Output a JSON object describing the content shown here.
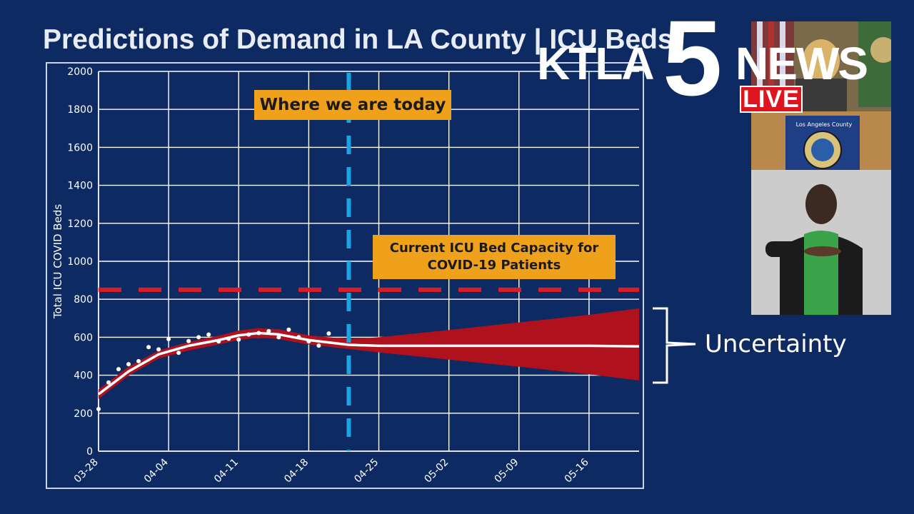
{
  "slide": {
    "title": "Predictions of Demand in LA County | ICU Beds"
  },
  "annotations": {
    "today": "Where we are today",
    "capacity": "Current ICU Bed Capacity for\nCOVID-19 Patients",
    "uncertainty": "Uncertainty"
  },
  "broadcast": {
    "station": "KTLA",
    "channel_number": "5",
    "news": "NEWS",
    "live": "LIVE",
    "podium_sign": "Los Angeles County"
  },
  "colors": {
    "background": "#0d2a63",
    "band": "#b0121d",
    "median_line": "#ffffff",
    "capacity_line": "#e01b24",
    "today_line": "#1fa3e0",
    "annotation_box": "#f0a11c",
    "live_badge": "#e0141e"
  },
  "chart_data": {
    "type": "line",
    "title": "",
    "xlabel": "",
    "ylabel": "Total ICU COVID Beds",
    "ylim": [
      0,
      2000
    ],
    "yticks": [
      0,
      200,
      400,
      600,
      800,
      1000,
      1200,
      1400,
      1600,
      1800,
      2000
    ],
    "xlim": [
      "03-28",
      "05-21"
    ],
    "xticks": [
      "03-28",
      "04-04",
      "04-11",
      "04-18",
      "04-25",
      "05-02",
      "05-09",
      "05-16"
    ],
    "grid": true,
    "capacity_value": 850,
    "today_date": "04-22",
    "series": [
      {
        "type": "points",
        "x": [
          "03-28",
          "03-29",
          "03-30",
          "03-31",
          "04-01",
          "04-02",
          "04-03",
          "04-04",
          "04-05",
          "04-06",
          "04-07",
          "04-08",
          "04-09",
          "04-10",
          "04-11",
          "04-12",
          "04-13",
          "04-14",
          "04-15",
          "04-16",
          "04-17",
          "04-18",
          "04-19",
          "04-20"
        ],
        "y": [
          222,
          362,
          432,
          458,
          474,
          548,
          536,
          590,
          518,
          580,
          600,
          614,
          578,
          592,
          588,
          614,
          622,
          632,
          600,
          640,
          600,
          578,
          556,
          620
        ]
      },
      {
        "type": "median",
        "x": [
          "03-28",
          "03-31",
          "04-03",
          "04-06",
          "04-09",
          "04-11",
          "04-13",
          "04-15",
          "04-18",
          "04-22",
          "04-25",
          "05-02",
          "05-09",
          "05-16",
          "05-21"
        ],
        "y": [
          300,
          420,
          510,
          555,
          585,
          610,
          622,
          615,
          585,
          560,
          555,
          555,
          555,
          555,
          552
        ]
      },
      {
        "type": "band_upper",
        "x": [
          "03-28",
          "03-31",
          "04-03",
          "04-06",
          "04-09",
          "04-11",
          "04-13",
          "04-15",
          "04-18",
          "04-22",
          "04-25",
          "05-02",
          "05-09",
          "05-16",
          "05-21"
        ],
        "y": [
          325,
          445,
          530,
          575,
          608,
          635,
          648,
          642,
          610,
          590,
          600,
          638,
          678,
          718,
          752
        ]
      },
      {
        "type": "band_lower",
        "x": [
          "03-28",
          "03-31",
          "04-03",
          "04-06",
          "04-09",
          "04-11",
          "04-13",
          "04-15",
          "04-18",
          "04-22",
          "04-25",
          "05-02",
          "05-09",
          "05-16",
          "05-21"
        ],
        "y": [
          275,
          398,
          488,
          530,
          562,
          586,
          598,
          590,
          562,
          538,
          520,
          482,
          445,
          405,
          372
        ]
      }
    ]
  }
}
